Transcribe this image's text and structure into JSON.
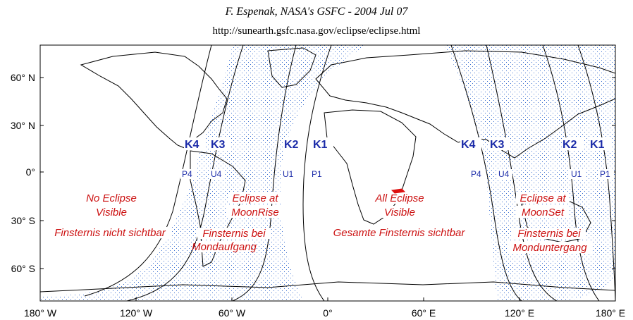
{
  "header": {
    "credit": "F. Espenak, NASA's GSFC - 2004 Jul 07",
    "url": "http://sunearth.gsfc.nasa.gov/eclipse/eclipse.html"
  },
  "map": {
    "lat_labels": [
      "60° N",
      "30° N",
      "0°",
      "30° S",
      "60° S"
    ],
    "lon_labels": [
      "180° W",
      "120° W",
      "60° W",
      "0°",
      "60° E",
      "120° E",
      "180° E"
    ],
    "contacts_west": {
      "k4": "K4",
      "k3": "K3",
      "k2": "K2",
      "k1": "K1"
    },
    "contacts_east": {
      "k4": "K4",
      "k3": "K3",
      "k2": "K2",
      "k1": "K1"
    },
    "pu_west": {
      "p4": "P4",
      "u4": "U4",
      "u1": "U1",
      "p1": "P1"
    },
    "pu_east": {
      "p4": "P4",
      "u4": "U4",
      "u1": "U1",
      "p1": "P1"
    },
    "regions": {
      "no_eclipse_1": "No Eclipse",
      "no_eclipse_2": "Visible",
      "no_eclipse_de": "Finsternis nicht  sichtbar",
      "moonrise_1": "Eclipse at",
      "moonrise_2": "MoonRise",
      "moonrise_de_1": "Finsternis  bei",
      "moonrise_de_2": "Mondaufgang",
      "all_1": "All Eclipse",
      "all_2": "Visible",
      "all_de": "Gesamte Finsternis sichtbar",
      "moonset_1": "Eclipse at",
      "moonset_2": "MoonSet",
      "moonset_de_1": "Finsternis bei",
      "moonset_de_2": "Monduntergang"
    },
    "colors": {
      "stipple": "#3a6fd0",
      "contacts": "#1a2aa8",
      "region_text": "#cc1111",
      "marker": "#dd1111"
    }
  }
}
